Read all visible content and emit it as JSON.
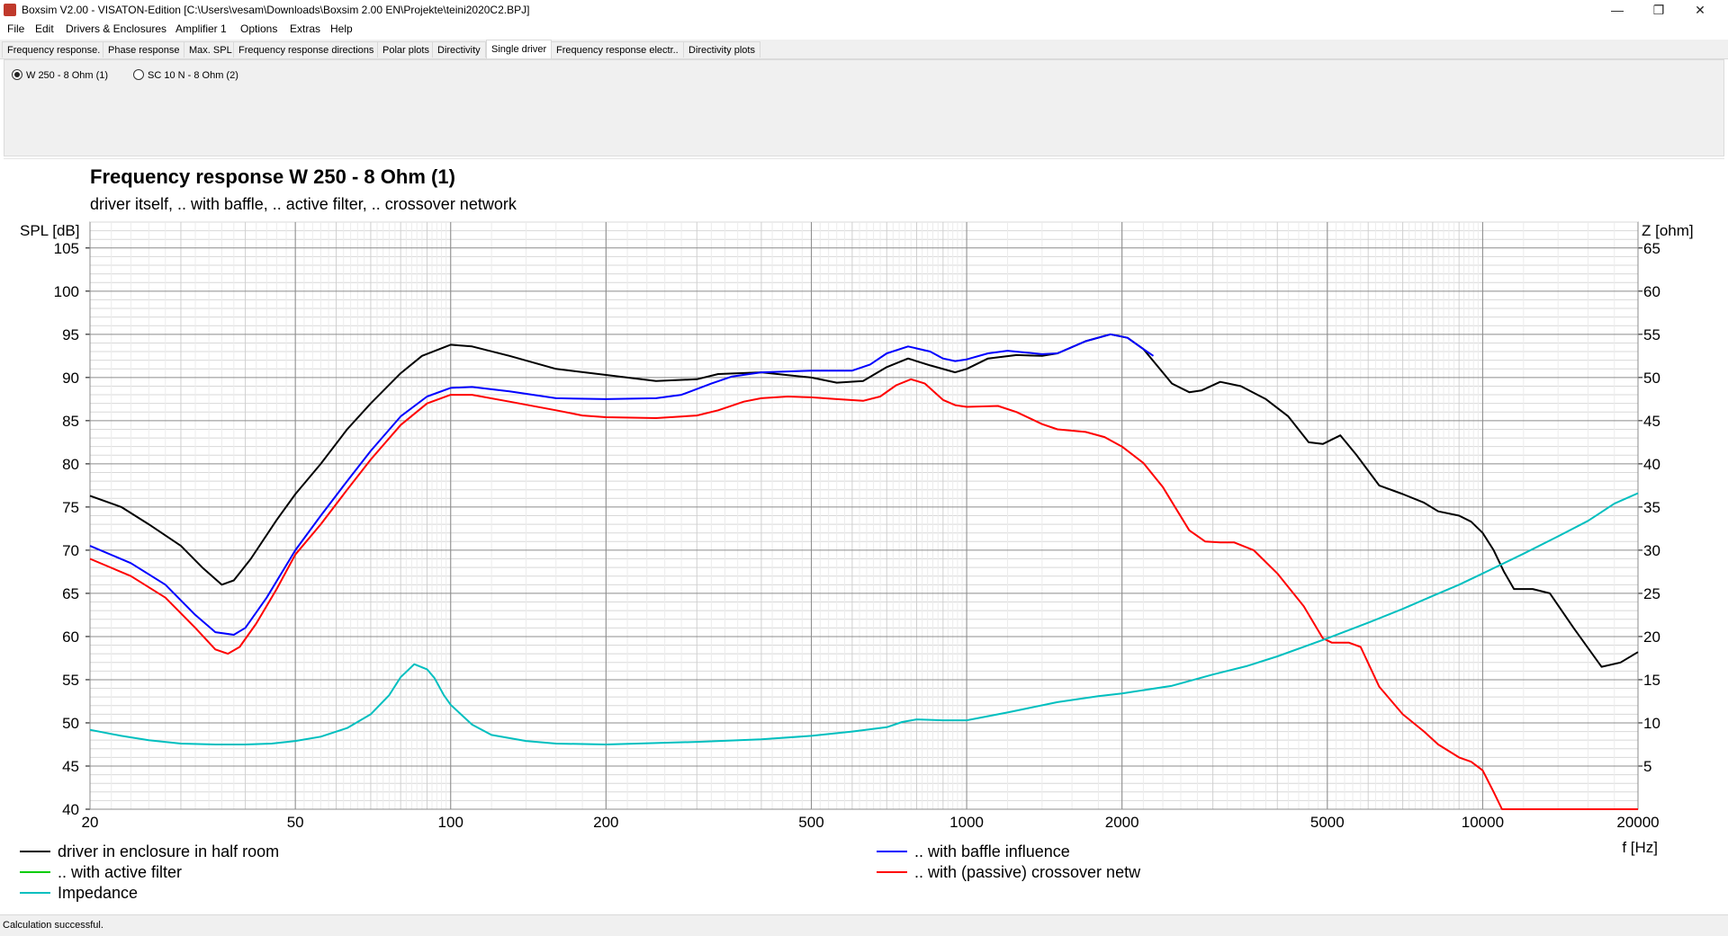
{
  "window": {
    "title": "Boxsim V2.00 - VISATON-Edition [C:\\Users\\vesam\\Downloads\\Boxsim 2.00 EN\\Projekte\\teini2020C2.BPJ]",
    "minimize_glyph": "—",
    "maximize_glyph": "❐",
    "close_glyph": "✕"
  },
  "menu": [
    "File",
    "Edit",
    "Drivers & Enclosures",
    "Amplifier 1",
    "Options",
    "Extras",
    "Help"
  ],
  "tabs": [
    {
      "label": "Frequency response.",
      "active": false
    },
    {
      "label": "Phase response",
      "active": false
    },
    {
      "label": "Max. SPL",
      "active": false
    },
    {
      "label": "Frequency response directions",
      "active": false
    },
    {
      "label": "Polar plots",
      "active": false
    },
    {
      "label": "Directivity",
      "active": false
    },
    {
      "label": "Single driver",
      "active": true
    },
    {
      "label": "Frequency response electr..",
      "active": false
    },
    {
      "label": "Directivity plots",
      "active": false
    }
  ],
  "drivers": [
    {
      "label": "W 250 - 8 Ohm (1)",
      "selected": true
    },
    {
      "label": "SC 10 N - 8 Ohm (2)",
      "selected": false
    }
  ],
  "status": "Calculation successful.",
  "chart_data": {
    "type": "line",
    "title": "Frequency response W 250 - 8 Ohm (1)",
    "subtitle": "driver itself, .. with baffle, .. active filter, .. crossover network",
    "ylabel": "SPL [dB]",
    "y2label": "Z [ohm]",
    "xlabel": "f [Hz]",
    "xscale": "log",
    "xlim": [
      20,
      20000
    ],
    "ylim": [
      40,
      108
    ],
    "y2lim": [
      0,
      68
    ],
    "xticks": [
      20,
      50,
      100,
      200,
      500,
      1000,
      2000,
      5000,
      10000,
      20000
    ],
    "yticks": [
      40,
      45,
      50,
      55,
      60,
      65,
      70,
      75,
      80,
      85,
      90,
      95,
      100,
      105
    ],
    "y2ticks": [
      5,
      10,
      15,
      20,
      25,
      30,
      35,
      40,
      45,
      50,
      55,
      60,
      65
    ],
    "grid": true,
    "legend_placement": "bottom",
    "series": [
      {
        "name": "driver in enclosure in half room",
        "color": "#000000",
        "axis": "left",
        "points": [
          [
            20,
            76.3
          ],
          [
            23,
            75
          ],
          [
            26,
            73
          ],
          [
            30,
            70.5
          ],
          [
            33,
            68
          ],
          [
            36,
            66
          ],
          [
            38,
            66.5
          ],
          [
            41,
            69
          ],
          [
            46,
            73.5
          ],
          [
            50,
            76.5
          ],
          [
            56,
            80
          ],
          [
            63,
            84
          ],
          [
            70,
            87
          ],
          [
            80,
            90.5
          ],
          [
            88,
            92.5
          ],
          [
            100,
            93.8
          ],
          [
            110,
            93.6
          ],
          [
            130,
            92.5
          ],
          [
            160,
            91
          ],
          [
            200,
            90.3
          ],
          [
            250,
            89.6
          ],
          [
            300,
            89.8
          ],
          [
            330,
            90.4
          ],
          [
            400,
            90.6
          ],
          [
            500,
            90
          ],
          [
            560,
            89.4
          ],
          [
            630,
            89.6
          ],
          [
            700,
            91.2
          ],
          [
            770,
            92.2
          ],
          [
            850,
            91.4
          ],
          [
            950,
            90.6
          ],
          [
            1000,
            91
          ],
          [
            1100,
            92.2
          ],
          [
            1250,
            92.6
          ],
          [
            1400,
            92.5
          ],
          [
            1500,
            92.8
          ],
          [
            1700,
            94.2
          ],
          [
            1900,
            95
          ],
          [
            2050,
            94.6
          ],
          [
            2200,
            93.3
          ],
          [
            2500,
            89.3
          ],
          [
            2700,
            88.3
          ],
          [
            2850,
            88.5
          ],
          [
            3100,
            89.5
          ],
          [
            3400,
            89
          ],
          [
            3800,
            87.5
          ],
          [
            4200,
            85.5
          ],
          [
            4600,
            82.5
          ],
          [
            4900,
            82.3
          ],
          [
            5300,
            83.3
          ],
          [
            5700,
            81
          ],
          [
            6300,
            77.5
          ],
          [
            7000,
            76.5
          ],
          [
            7700,
            75.5
          ],
          [
            8200,
            74.5
          ],
          [
            9000,
            74
          ],
          [
            9500,
            73.3
          ],
          [
            10000,
            72
          ],
          [
            10500,
            70
          ],
          [
            11000,
            67.5
          ],
          [
            11500,
            65.5
          ],
          [
            12500,
            65.5
          ],
          [
            13500,
            65
          ],
          [
            15000,
            61
          ],
          [
            17000,
            56.5
          ],
          [
            18500,
            57
          ],
          [
            20000,
            58.2
          ]
        ]
      },
      {
        "name": ".. with baffle influence",
        "color": "#0000ff",
        "axis": "left",
        "points": [
          [
            20,
            70.5
          ],
          [
            24,
            68.5
          ],
          [
            28,
            66
          ],
          [
            32,
            62.5
          ],
          [
            35,
            60.5
          ],
          [
            38,
            60.2
          ],
          [
            40,
            61
          ],
          [
            44,
            64.5
          ],
          [
            50,
            70
          ],
          [
            56,
            74
          ],
          [
            63,
            78
          ],
          [
            70,
            81.5
          ],
          [
            80,
            85.5
          ],
          [
            90,
            87.8
          ],
          [
            100,
            88.8
          ],
          [
            110,
            88.9
          ],
          [
            130,
            88.4
          ],
          [
            160,
            87.6
          ],
          [
            200,
            87.5
          ],
          [
            250,
            87.6
          ],
          [
            280,
            88
          ],
          [
            320,
            89.3
          ],
          [
            350,
            90.1
          ],
          [
            400,
            90.6
          ],
          [
            500,
            90.8
          ],
          [
            600,
            90.8
          ],
          [
            650,
            91.5
          ],
          [
            700,
            92.8
          ],
          [
            770,
            93.6
          ],
          [
            850,
            93
          ],
          [
            900,
            92.2
          ],
          [
            950,
            91.9
          ],
          [
            1000,
            92.1
          ],
          [
            1100,
            92.8
          ],
          [
            1200,
            93.1
          ],
          [
            1400,
            92.7
          ],
          [
            1500,
            92.8
          ],
          [
            1700,
            94.2
          ],
          [
            1900,
            95
          ],
          [
            2050,
            94.6
          ],
          [
            2200,
            93.3
          ],
          [
            2300,
            92.5
          ]
        ]
      },
      {
        "name": ".. with active filter",
        "color": "#00cc00",
        "axis": "left",
        "points": []
      },
      {
        "name": ".. with (passive) crossover netw",
        "color": "#ff0000",
        "axis": "left",
        "points": [
          [
            20,
            69
          ],
          [
            24,
            67
          ],
          [
            28,
            64.5
          ],
          [
            32,
            61
          ],
          [
            35,
            58.5
          ],
          [
            37,
            58
          ],
          [
            39,
            58.8
          ],
          [
            42,
            61.5
          ],
          [
            46,
            65.5
          ],
          [
            50,
            69.5
          ],
          [
            56,
            73
          ],
          [
            63,
            77
          ],
          [
            70,
            80.5
          ],
          [
            80,
            84.5
          ],
          [
            90,
            87
          ],
          [
            100,
            88
          ],
          [
            110,
            88
          ],
          [
            130,
            87.2
          ],
          [
            160,
            86.2
          ],
          [
            180,
            85.6
          ],
          [
            200,
            85.4
          ],
          [
            250,
            85.3
          ],
          [
            300,
            85.6
          ],
          [
            330,
            86.2
          ],
          [
            370,
            87.2
          ],
          [
            400,
            87.6
          ],
          [
            450,
            87.8
          ],
          [
            500,
            87.7
          ],
          [
            560,
            87.5
          ],
          [
            630,
            87.3
          ],
          [
            680,
            87.8
          ],
          [
            730,
            89.1
          ],
          [
            780,
            89.8
          ],
          [
            830,
            89.3
          ],
          [
            900,
            87.4
          ],
          [
            950,
            86.8
          ],
          [
            1000,
            86.6
          ],
          [
            1150,
            86.7
          ],
          [
            1250,
            86
          ],
          [
            1400,
            84.6
          ],
          [
            1500,
            84
          ],
          [
            1700,
            83.7
          ],
          [
            1850,
            83.1
          ],
          [
            2000,
            82
          ],
          [
            2200,
            80.1
          ],
          [
            2400,
            77.3
          ],
          [
            2700,
            72.3
          ],
          [
            2900,
            71
          ],
          [
            3100,
            70.9
          ],
          [
            3300,
            70.9
          ],
          [
            3600,
            70
          ],
          [
            4000,
            67.3
          ],
          [
            4500,
            63.5
          ],
          [
            4900,
            59.8
          ],
          [
            5100,
            59.3
          ],
          [
            5500,
            59.3
          ],
          [
            5800,
            58.8
          ],
          [
            6300,
            54.2
          ],
          [
            7000,
            51
          ],
          [
            7700,
            49
          ],
          [
            8200,
            47.5
          ],
          [
            9000,
            46
          ],
          [
            9500,
            45.5
          ],
          [
            10000,
            44.5
          ],
          [
            10500,
            42
          ],
          [
            10900,
            40
          ]
        ]
      },
      {
        "name": "Impedance",
        "color": "#00bfbf",
        "axis": "right",
        "points": [
          [
            20,
            9.2
          ],
          [
            23,
            8.5
          ],
          [
            26,
            8
          ],
          [
            30,
            7.6
          ],
          [
            35,
            7.5
          ],
          [
            40,
            7.5
          ],
          [
            45,
            7.6
          ],
          [
            50,
            7.9
          ],
          [
            56,
            8.4
          ],
          [
            63,
            9.4
          ],
          [
            70,
            11
          ],
          [
            76,
            13.2
          ],
          [
            80,
            15.3
          ],
          [
            85,
            16.8
          ],
          [
            90,
            16.2
          ],
          [
            93,
            15.2
          ],
          [
            97,
            13.2
          ],
          [
            100,
            12.1
          ],
          [
            110,
            9.8
          ],
          [
            120,
            8.6
          ],
          [
            140,
            7.9
          ],
          [
            160,
            7.6
          ],
          [
            200,
            7.5
          ],
          [
            300,
            7.8
          ],
          [
            400,
            8.1
          ],
          [
            500,
            8.5
          ],
          [
            600,
            9
          ],
          [
            700,
            9.5
          ],
          [
            750,
            10.1
          ],
          [
            800,
            10.4
          ],
          [
            900,
            10.3
          ],
          [
            1000,
            10.3
          ],
          [
            1200,
            11.2
          ],
          [
            1500,
            12.4
          ],
          [
            1800,
            13.1
          ],
          [
            2000,
            13.4
          ],
          [
            2500,
            14.3
          ],
          [
            3000,
            15.6
          ],
          [
            3500,
            16.6
          ],
          [
            4000,
            17.7
          ],
          [
            5000,
            19.8
          ],
          [
            6000,
            21.6
          ],
          [
            7000,
            23.2
          ],
          [
            8000,
            24.7
          ],
          [
            9000,
            26
          ],
          [
            10000,
            27.3
          ],
          [
            12000,
            29.6
          ],
          [
            14000,
            31.6
          ],
          [
            16000,
            33.4
          ],
          [
            18000,
            35.4
          ],
          [
            20000,
            36.6
          ]
        ]
      }
    ]
  }
}
